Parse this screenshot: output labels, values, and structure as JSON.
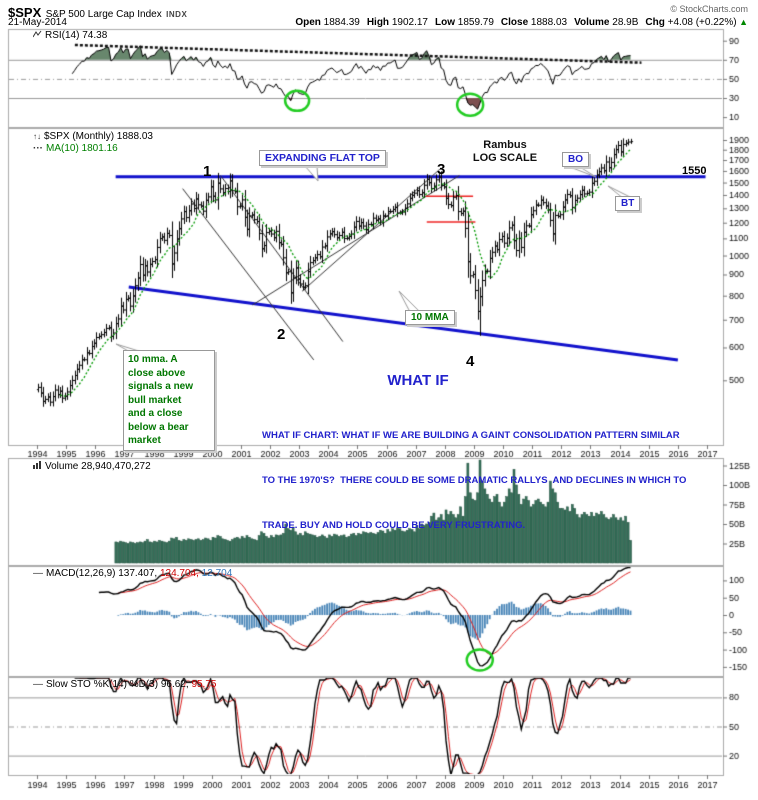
{
  "header": {
    "symbol": "$SPX",
    "index_name": "S&P 500 Large Cap Index",
    "exchange": "INDX",
    "copyright": "© StockCharts.com",
    "date": "21-May-2014",
    "quote": [
      {
        "label": "Open",
        "value": "1884.39"
      },
      {
        "label": "High",
        "value": "1902.17"
      },
      {
        "label": "Low",
        "value": "1859.79"
      },
      {
        "label": "Close",
        "value": "1888.03"
      },
      {
        "label": "Volume",
        "value": "28.9B"
      },
      {
        "label": "Chg",
        "value": "+4.08 (+0.22%)"
      }
    ],
    "chg_arrow": "▲"
  },
  "colors": {
    "annotation_blue": "#2222cc",
    "trend_blue": "#1111cc",
    "annotation_green": "#007700",
    "circle_green": "#22cc22",
    "red_line": "#ee2222",
    "ma_green": "#009900",
    "volume_fill": "#35715a",
    "volume_edge": "#1c4a38",
    "hist_blue": "#4a86b8",
    "rsi_overbought_fill": "#68876d",
    "rsi_oversold_fill": "#7d4f50"
  },
  "x_axis": {
    "start": 1994,
    "end": 2017.4,
    "tick_years": [
      1994,
      1995,
      1996,
      1997,
      1998,
      1999,
      2000,
      2001,
      2002,
      2003,
      2004,
      2005,
      2006,
      2007,
      2008,
      2009,
      2010,
      2011,
      2012,
      2013,
      2014,
      2015,
      2016,
      2017
    ]
  },
  "chart_data": [
    {
      "id": "rsi",
      "type": "line",
      "legend": "RSI(14) 74.38",
      "params": {
        "period": 14
      },
      "current": 74.38,
      "yticks": [
        90,
        70,
        50,
        30,
        10
      ],
      "hlines": [
        {
          "v": 70,
          "style": "solid"
        },
        {
          "v": 50,
          "style": "dashdot"
        },
        {
          "v": 30,
          "style": "solid"
        }
      ],
      "trendline": {
        "x1": 1995.3,
        "v1": 85.5,
        "x2": 2014.75,
        "v2": 67
      },
      "circles": [
        {
          "x": 2002.93,
          "v": 27,
          "rx": 12,
          "ry": 10
        },
        {
          "x": 2008.87,
          "v": 23,
          "rx": 13,
          "ry": 11
        }
      ],
      "derived_from": "price closes"
    },
    {
      "id": "price",
      "type": "ohlc_bars",
      "log_scale": true,
      "legend": "$SPX (Monthly) 1888.03",
      "ma_icon": "···",
      "ma_legend": "MA(10) 1801.16",
      "price_icon": "↑↓",
      "start_year": 1994,
      "interval": "monthly",
      "yticks": [
        1900,
        1800,
        1700,
        1600,
        1500,
        1400,
        1300,
        1200,
        1100,
        1000,
        900,
        800,
        700,
        600,
        500
      ],
      "closes": [
        482,
        467,
        446,
        451,
        457,
        444,
        458,
        475,
        463,
        472,
        454,
        459,
        470,
        487,
        501,
        515,
        533,
        545,
        562,
        562,
        584,
        582,
        605,
        616,
        636,
        640,
        646,
        654,
        669,
        671,
        640,
        652,
        687,
        705,
        757,
        741,
        786,
        791,
        757,
        801,
        848,
        885,
        954,
        899,
        947,
        915,
        955,
        970,
        980,
        1049,
        1102,
        1112,
        1091,
        1134,
        1121,
        957,
        1017,
        1099,
        1164,
        1229,
        1280,
        1238,
        1286,
        1335,
        1302,
        1373,
        1329,
        1320,
        1283,
        1363,
        1389,
        1469,
        1394,
        1366,
        1499,
        1452,
        1421,
        1455,
        1431,
        1518,
        1437,
        1429,
        1315,
        1320,
        1366,
        1240,
        1160,
        1249,
        1256,
        1224,
        1211,
        1134,
        1041,
        1060,
        1139,
        1148,
        1130,
        1107,
        1147,
        1077,
        1067,
        990,
        911,
        916,
        815,
        886,
        936,
        880,
        856,
        841,
        848,
        917,
        964,
        975,
        990,
        1008,
        996,
        1051,
        1058,
        1112,
        1131,
        1145,
        1126,
        1107,
        1121,
        1141,
        1102,
        1104,
        1115,
        1130,
        1174,
        1212,
        1181,
        1204,
        1181,
        1157,
        1192,
        1191,
        1234,
        1220,
        1229,
        1207,
        1249,
        1248,
        1280,
        1281,
        1295,
        1311,
        1270,
        1270,
        1277,
        1304,
        1336,
        1378,
        1401,
        1418,
        1438,
        1407,
        1421,
        1482,
        1531,
        1503,
        1455,
        1474,
        1527,
        1549,
        1481,
        1468,
        1378,
        1331,
        1323,
        1386,
        1400,
        1280,
        1267,
        1283,
        1166,
        969,
        896,
        903,
        826,
        735,
        798,
        873,
        919,
        919,
        987,
        1021,
        1057,
        1036,
        1096,
        1115,
        1074,
        1104,
        1169,
        1187,
        1089,
        1031,
        1102,
        1049,
        1141,
        1183,
        1181,
        1258,
        1286,
        1327,
        1326,
        1364,
        1345,
        1321,
        1292,
        1219,
        1131,
        1253,
        1247,
        1258,
        1312,
        1366,
        1408,
        1398,
        1310,
        1362,
        1379,
        1407,
        1441,
        1412,
        1416,
        1426,
        1498,
        1515,
        1569,
        1598,
        1631,
        1606,
        1686,
        1633,
        1682,
        1757,
        1806,
        1848,
        1783,
        1859,
        1872,
        1884,
        1888
      ],
      "low_overrides": {
        "181": 700,
        "182": 640
      },
      "annotations": {
        "pattern_label": "EXPANDING FLAT TOP",
        "scale_label_1": "Rambus",
        "scale_label_2": "LOG SCALE",
        "breakout_label": "BO",
        "backtest_label": "BT",
        "level_label": "1550",
        "ma_callout": "10 MMA",
        "point_1": "1",
        "point_2": "2",
        "point_3": "3",
        "point_4": "4",
        "what_if_title": "WHAT IF",
        "what_if_lines": [
          "WHAT IF CHART: WHAT IF WE ARE BUILDING A GAINT CONSOLIDATION PATTERN SIMILAR",
          "TO THE 1970'S?  THERE COULD BE SOME DRAMATIC RALLYS  AND DECLINES IN WHICH TO",
          "TRADE. BUY AND HOLD COULD BE VERY FRUSTRATING."
        ],
        "note_lines": [
          "10 mma. A",
          "close above",
          "signals a new",
          "bull market",
          "and a close",
          "below a bear",
          "market"
        ],
        "lines": [
          {
            "name": "flat-top",
            "x1": 1996.7,
            "v1": 1550,
            "x2": 2016.95,
            "v2": 1550,
            "color": "#1111cc",
            "width": 3
          },
          {
            "name": "lower-support",
            "x1": 1997.15,
            "v1": 840,
            "x2": 2016.0,
            "v2": 560,
            "color": "#1111cc",
            "width": 3
          },
          {
            "name": "down-a",
            "x1": 1999.0,
            "v1": 1450,
            "x2": 2003.5,
            "v2": 560,
            "color": "#333333",
            "width": 1
          },
          {
            "name": "down-b",
            "x1": 2000.3,
            "v1": 1560,
            "x2": 2004.5,
            "v2": 620,
            "color": "#333333",
            "width": 1
          },
          {
            "name": "up-a",
            "x1": 2001.4,
            "v1": 760,
            "x2": 2008.5,
            "v2": 1560,
            "color": "#333333",
            "width": 1
          },
          {
            "name": "up-b",
            "x1": 2003.1,
            "v1": 820,
            "x2": 2007.85,
            "v2": 1620,
            "color": "#333333",
            "width": 1
          },
          {
            "name": "red-shelf-1",
            "x1": 2007.35,
            "v1": 1390,
            "x2": 2008.97,
            "v2": 1390,
            "color": "#ee2222",
            "width": 1.5
          },
          {
            "name": "red-shelf-2",
            "x1": 2007.38,
            "v1": 1205,
            "x2": 2009.05,
            "v2": 1205,
            "color": "#ee2222",
            "width": 1.5
          }
        ]
      }
    },
    {
      "id": "volume",
      "type": "bar",
      "legend": "Volume 28,940,470,272",
      "unit": "B",
      "start_index": 32,
      "yticks": [
        "125B",
        "100B",
        "75B",
        "50B",
        "25B"
      ],
      "values": [
        27,
        26,
        28,
        27,
        26,
        25,
        27,
        26,
        25,
        26,
        27,
        26,
        28,
        30,
        27,
        26,
        28,
        27,
        29,
        28,
        27,
        26,
        28,
        32,
        31,
        33,
        29,
        28,
        30,
        29,
        31,
        30,
        29,
        30,
        31,
        29,
        30,
        32,
        31,
        29,
        33,
        32,
        35,
        34,
        31,
        30,
        29,
        28,
        30,
        32,
        33,
        31,
        34,
        32,
        35,
        33,
        31,
        30,
        29,
        35,
        40,
        38,
        34,
        32,
        35,
        33,
        36,
        35,
        36,
        38,
        50,
        44,
        42,
        46,
        40,
        36,
        38,
        35,
        40,
        38,
        37,
        36,
        35,
        33,
        34,
        36,
        34,
        32,
        36,
        34,
        37,
        36,
        34,
        35,
        36,
        33,
        34,
        37,
        38,
        35,
        38,
        37,
        40,
        39,
        38,
        39,
        38,
        37,
        39,
        42,
        41,
        38,
        43,
        40,
        44,
        42,
        45,
        44,
        41,
        40,
        42,
        44,
        43,
        40,
        48,
        44,
        50,
        48,
        50,
        52,
        60,
        64,
        55,
        58,
        62,
        55,
        68,
        62,
        66,
        62,
        58,
        62,
        72,
        60,
        85,
        128,
        90,
        82,
        80,
        90,
        132,
        105,
        95,
        88,
        82,
        78,
        85,
        88,
        78,
        72,
        78,
        85,
        95,
        90,
        120,
        100,
        88,
        75,
        82,
        85,
        80,
        72,
        75,
        80,
        82,
        78,
        75,
        72,
        78,
        105,
        95,
        90,
        78,
        70,
        70,
        68,
        72,
        66,
        75,
        70,
        62,
        58,
        62,
        65,
        62,
        60,
        65,
        60,
        64,
        62,
        66,
        62,
        58,
        56,
        58,
        62,
        58,
        55,
        58,
        54,
        60,
        52,
        29
      ]
    },
    {
      "id": "macd",
      "type": "macd",
      "legend_black": "MACD(12,26,9) 137.407,",
      "legend_red": "124.704,",
      "legend_blue": "12.704",
      "params": [
        12,
        26,
        9
      ],
      "current": [
        137.407,
        124.704,
        12.704
      ],
      "yticks": [
        100,
        50,
        0,
        -50,
        -100,
        -150
      ],
      "circle": {
        "x": 2009.2,
        "v": -130,
        "rx": 13,
        "ry": 10.5
      },
      "derived_from": "price closes"
    },
    {
      "id": "sto",
      "type": "stochastic",
      "legend_black": "Slow STO %K(14) %D(3) 96.62,",
      "legend_red": "95.75",
      "current": [
        96.62,
        95.75
      ],
      "yticks": [
        80,
        50,
        20
      ],
      "hlines": [
        {
          "v": 80,
          "style": "solid"
        },
        {
          "v": 50,
          "style": "dashdot"
        },
        {
          "v": 20,
          "style": "solid"
        }
      ],
      "derived_from": "price closes"
    }
  ]
}
